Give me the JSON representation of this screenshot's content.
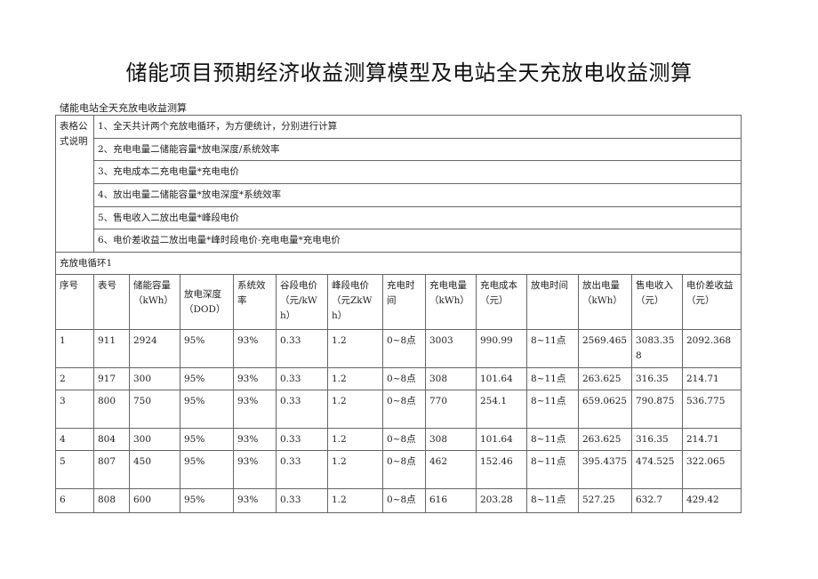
{
  "title": "储能项目预期经济收益测算模型及电站全天充放电收益测算",
  "subtitle": "储能电站全天充放电收益测算",
  "formula_label": "表格公式说明",
  "formulas": [
    "1、全天共计两个充放电循环，为方便统计，分别进行计算",
    "2、充电电量二储能容量*放电深度/系统效率",
    "3、充电成本二充电电量*充电电价",
    "4、放出电量二储能容量*放电深度*系统效率",
    "5、售电收入二放出电量*峰段电价",
    "6、电价差收益二放出电量*峰时段电价-充电电量*充电电价"
  ],
  "cycle_label": "充放电循环1",
  "headers": [
    "序号",
    "表号",
    "储能容量（kWh）",
    "放电深度（DOD）",
    "系统效率",
    "谷段电价（元/kWh）",
    "峰段电价（元ZkWh）",
    "充电时间",
    "充电电量（kWh）",
    "充电成本（元）",
    "放电时间",
    "放出电量（kWh）",
    "售电收入（元）",
    "电价差收益（元）"
  ],
  "rows": [
    [
      "1",
      "911",
      "2924",
      "95%",
      "93%",
      "0.33",
      "1.2",
      "0~8点",
      "3003",
      "990.99",
      "8~11点",
      "2569.465",
      "3083.358",
      "2092.368"
    ],
    [
      "2",
      "917",
      "300",
      "95%",
      "93%",
      "0.33",
      "1.2",
      "0~8点",
      "308",
      "101.64",
      "8~11点",
      "263.625",
      "316.35",
      "214.71"
    ],
    [
      "3",
      "800",
      "750",
      "95%",
      "93%",
      "0.33",
      "1.2",
      "0~8点",
      "770",
      "254.1",
      "8~11点",
      "659.0625",
      "790.875",
      "536.775"
    ],
    [
      "4",
      "804",
      "300",
      "95%",
      "93%",
      "0.33",
      "1.2",
      "0~8点",
      "308",
      "101.64",
      "8~11点",
      "263.625",
      "316.35",
      "214.71"
    ],
    [
      "5",
      "807",
      "450",
      "95%",
      "93%",
      "0.33",
      "1.2",
      "0~8点",
      "462",
      "152.46",
      "8~11点",
      "395.4375",
      "474.525",
      "322.065"
    ],
    [
      "6",
      "808",
      "600",
      "95%",
      "93%",
      "0.33",
      "1.2",
      "0~8点",
      "616",
      "203.28",
      "8~11点",
      "527.25",
      "632.7",
      "429.42"
    ]
  ]
}
